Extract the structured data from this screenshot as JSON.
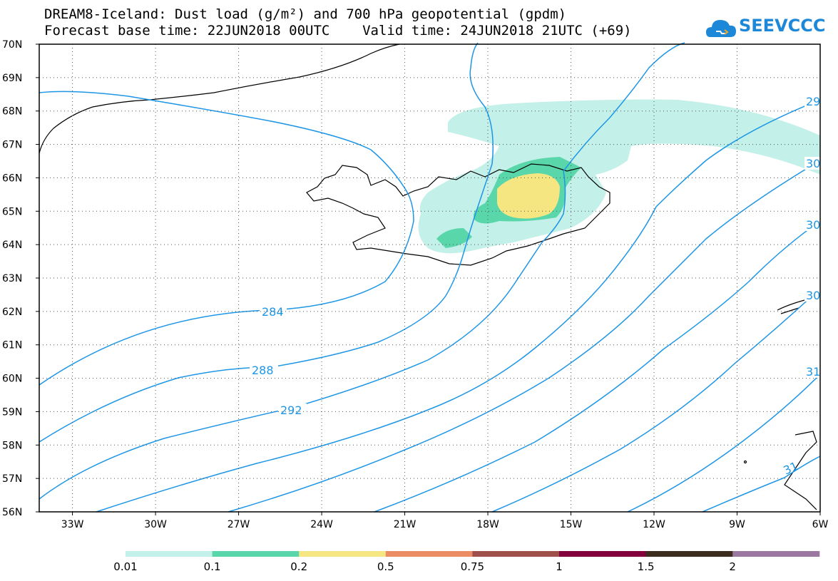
{
  "title": {
    "line1": "DREAM8-Iceland: Dust load (g/m²) and 700 hPa geopotential (gpdm)",
    "line2": "Forecast base time: 22JUN2018 00UTC    Valid time: 24JUN2018 21UTC (+69)"
  },
  "logo": {
    "text": "SEEVCCC",
    "icon": "cloud-icon"
  },
  "lat_ticks": [
    "70N",
    "69N",
    "68N",
    "67N",
    "66N",
    "65N",
    "64N",
    "63N",
    "62N",
    "61N",
    "60N",
    "59N",
    "58N",
    "57N",
    "56N"
  ],
  "lon_ticks": [
    "33W",
    "30W",
    "27W",
    "24W",
    "21W",
    "18W",
    "15W",
    "12W",
    "9W",
    "6W"
  ],
  "contour_labels": [
    "284",
    "288",
    "292",
    "29",
    "30",
    "30",
    "30",
    "31",
    "31"
  ],
  "colorbar": {
    "labels": [
      "0.01",
      "0.1",
      "0.2",
      "0.5",
      "0.75",
      "1",
      "1.5",
      "2"
    ],
    "colors": [
      "#c3f0e8",
      "#5ad7aa",
      "#f5e682",
      "#eb8c64",
      "#a0504b",
      "#82003c",
      "#3c2d1e",
      "#9b78a0"
    ]
  },
  "colors": {
    "contour": "#1e96e6",
    "coast": "#000000"
  }
}
